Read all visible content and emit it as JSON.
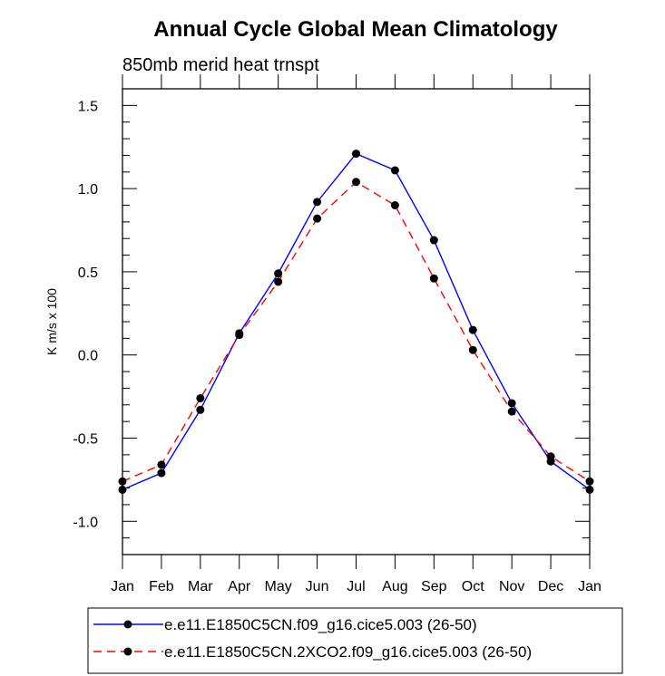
{
  "chart_data": {
    "type": "line",
    "title": "Annual Cycle Global Mean Climatology",
    "subtitle": "850mb merid heat trnspt",
    "xlabel": "",
    "ylabel": "K m/s x 100",
    "categories": [
      "Jan",
      "Feb",
      "Mar",
      "Apr",
      "May",
      "Jun",
      "Jul",
      "Aug",
      "Sep",
      "Oct",
      "Nov",
      "Dec",
      "Jan"
    ],
    "ylim": [
      -1.2,
      1.6
    ],
    "yticks": [
      -1.0,
      -0.5,
      0.0,
      0.5,
      1.0,
      1.5
    ],
    "ytick_labels": [
      "-1.0",
      "-0.5",
      "0.0",
      "0.5",
      "1.0",
      "1.5"
    ],
    "grid": false,
    "legend_position": "bottom",
    "series": [
      {
        "name": "e.e11.E1850C5CN.f09_g16.cice5.003 (26-50)",
        "color": "#0000ff",
        "dash": "solid",
        "values": [
          -0.81,
          -0.71,
          -0.33,
          0.13,
          0.49,
          0.92,
          1.21,
          1.11,
          0.69,
          0.15,
          -0.29,
          -0.64,
          -0.81
        ]
      },
      {
        "name": "e.e11.E1850C5CN.2XCO2.f09_g16.cice5.003 (26-50)",
        "color": "#ff0000",
        "dash": "dashed",
        "values": [
          -0.76,
          -0.66,
          -0.26,
          0.12,
          0.44,
          0.82,
          1.04,
          0.9,
          0.46,
          0.03,
          -0.34,
          -0.61,
          -0.76
        ]
      }
    ]
  }
}
